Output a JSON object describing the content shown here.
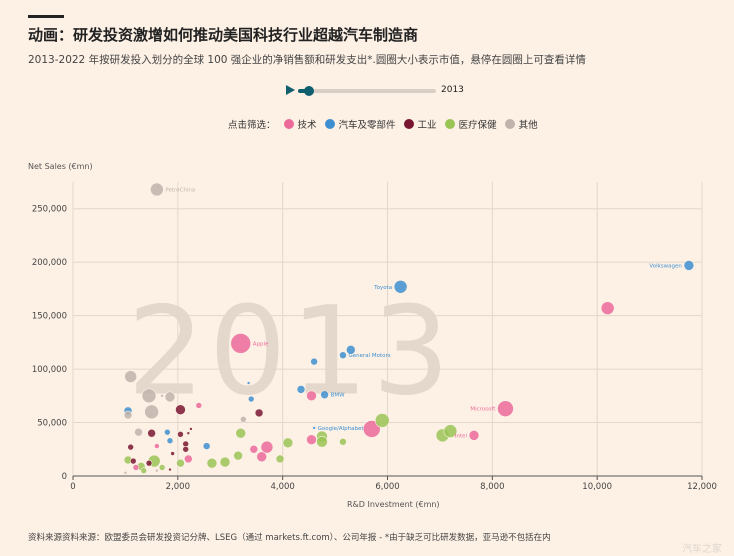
{
  "header": {
    "title": "动画：研发投资激增如何推动美国科技行业超越汽车制造商",
    "subtitle": "2013-2022 年按研发投入划分的全球 100 强企业的净销售额和研发支出*.圆圈大小表示市值，悬停在圆圈上可查看详情"
  },
  "player": {
    "year": "2013",
    "progress": 0.08
  },
  "legend": {
    "label": "点击筛选：",
    "items": [
      {
        "label": "技术",
        "color": "#ec6a9a"
      },
      {
        "label": "汽车及零部件",
        "color": "#3d8fd0"
      },
      {
        "label": "工业",
        "color": "#7a1530"
      },
      {
        "label": "医疗保健",
        "color": "#9ac455"
      },
      {
        "label": "其他",
        "color": "#bfb3ab"
      }
    ]
  },
  "footer": {
    "source": "资料来源资料来源：欧盟委员会研发投资记分牌、LSEG（通过 markets.ft.com）、公司年报 - *由于缺乏可比研发数据，亚马逊不包括在内",
    "watermark": "汽车之家"
  },
  "chart_data": {
    "type": "scatter",
    "year_watermark": "2013",
    "xlabel": "R&D Investment (€mn)",
    "ylabel": "Net Sales (€mn)",
    "xlim": [
      0,
      12000
    ],
    "ylim": [
      0,
      275000
    ],
    "xticks": [
      0,
      2000,
      4000,
      6000,
      8000,
      10000,
      12000
    ],
    "xtick_labels": [
      "0",
      "2,000",
      "4,000",
      "6,000",
      "8,000",
      "10,000",
      "12,000"
    ],
    "yticks": [
      0,
      50000,
      100000,
      150000,
      200000,
      250000
    ],
    "ytick_labels": [
      "0",
      "50,000",
      "100,000",
      "150,000",
      "200,000",
      "250,000"
    ],
    "grid": true,
    "series_colors": {
      "tech": "#ec6a9a",
      "auto": "#3d8fd0",
      "ind": "#7a1530",
      "health": "#9ac455",
      "other": "#bfb3ab"
    },
    "points": [
      {
        "x": 11750,
        "y": 197000,
        "s": "auto",
        "r": 5,
        "label": "Volkswagen",
        "anchor": "end"
      },
      {
        "x": 10200,
        "y": 157000,
        "s": "tech",
        "r": 6.5
      },
      {
        "x": 6250,
        "y": 177000,
        "s": "auto",
        "r": 6.5,
        "label": "Toyota",
        "anchor": "end"
      },
      {
        "x": 1600,
        "y": 268000,
        "s": "other",
        "r": 6.5,
        "label": "PetroChina",
        "anchor": "start"
      },
      {
        "x": 3200,
        "y": 124000,
        "s": "tech",
        "r": 10,
        "label": "Apple",
        "anchor": "start"
      },
      {
        "x": 5300,
        "y": 118000,
        "s": "auto",
        "r": 4.5
      },
      {
        "x": 5150,
        "y": 113000,
        "s": "auto",
        "r": 3.5,
        "label": "General Motors",
        "anchor": "start"
      },
      {
        "x": 4600,
        "y": 107000,
        "s": "auto",
        "r": 3.5
      },
      {
        "x": 3350,
        "y": 87000,
        "s": "auto",
        "r": 1.5
      },
      {
        "x": 4350,
        "y": 81000,
        "s": "auto",
        "r": 4
      },
      {
        "x": 4550,
        "y": 75000,
        "s": "tech",
        "r": 5
      },
      {
        "x": 4800,
        "y": 76000,
        "s": "auto",
        "r": 4,
        "label": "BMW",
        "anchor": "start"
      },
      {
        "x": 3400,
        "y": 72000,
        "s": "auto",
        "r": 3
      },
      {
        "x": 8250,
        "y": 63000,
        "s": "tech",
        "r": 8,
        "label": "Microsoft",
        "anchor": "end"
      },
      {
        "x": 5900,
        "y": 52000,
        "s": "health",
        "r": 7
      },
      {
        "x": 5700,
        "y": 44000,
        "s": "tech",
        "r": 8.5
      },
      {
        "x": 4600,
        "y": 45000,
        "s": "auto",
        "r": 1.5,
        "label": "Google/Alphabet",
        "anchor": "start"
      },
      {
        "x": 7050,
        "y": 38000,
        "s": "health",
        "r": 6.5
      },
      {
        "x": 7200,
        "y": 42000,
        "s": "health",
        "r": 6.5
      },
      {
        "x": 7650,
        "y": 38000,
        "s": "tech",
        "r": 5,
        "label": "Intel",
        "anchor": "end"
      },
      {
        "x": 4750,
        "y": 37000,
        "s": "health",
        "r": 5.5
      },
      {
        "x": 4750,
        "y": 32000,
        "s": "health",
        "r": 5.5
      },
      {
        "x": 4550,
        "y": 34000,
        "s": "tech",
        "r": 5
      },
      {
        "x": 5150,
        "y": 32000,
        "s": "health",
        "r": 3.5
      },
      {
        "x": 4100,
        "y": 31000,
        "s": "health",
        "r": 5
      },
      {
        "x": 3700,
        "y": 27000,
        "s": "tech",
        "r": 6
      },
      {
        "x": 3450,
        "y": 25000,
        "s": "tech",
        "r": 4
      },
      {
        "x": 3600,
        "y": 18000,
        "s": "tech",
        "r": 5
      },
      {
        "x": 3150,
        "y": 19000,
        "s": "health",
        "r": 4.5
      },
      {
        "x": 3200,
        "y": 40000,
        "s": "health",
        "r": 5
      },
      {
        "x": 3250,
        "y": 53000,
        "s": "other",
        "r": 3
      },
      {
        "x": 3550,
        "y": 59000,
        "s": "ind",
        "r": 4
      },
      {
        "x": 3950,
        "y": 16000,
        "s": "health",
        "r": 4
      },
      {
        "x": 2900,
        "y": 13000,
        "s": "health",
        "r": 5
      },
      {
        "x": 2650,
        "y": 12000,
        "s": "health",
        "r": 5
      },
      {
        "x": 2400,
        "y": 66000,
        "s": "tech",
        "r": 3
      },
      {
        "x": 2050,
        "y": 62000,
        "s": "ind",
        "r": 5
      },
      {
        "x": 2050,
        "y": 39000,
        "s": "ind",
        "r": 3
      },
      {
        "x": 2150,
        "y": 30000,
        "s": "ind",
        "r": 3
      },
      {
        "x": 2150,
        "y": 25000,
        "s": "ind",
        "r": 3
      },
      {
        "x": 2200,
        "y": 40000,
        "s": "ind",
        "r": 1.5
      },
      {
        "x": 2250,
        "y": 44000,
        "s": "ind",
        "r": 1.5
      },
      {
        "x": 2200,
        "y": 16000,
        "s": "tech",
        "r": 4
      },
      {
        "x": 2050,
        "y": 12000,
        "s": "health",
        "r": 4
      },
      {
        "x": 1800,
        "y": 41000,
        "s": "auto",
        "r": 3
      },
      {
        "x": 1850,
        "y": 33000,
        "s": "auto",
        "r": 3
      },
      {
        "x": 1900,
        "y": 21000,
        "s": "ind",
        "r": 2
      },
      {
        "x": 2550,
        "y": 28000,
        "s": "auto",
        "r": 3.5
      },
      {
        "x": 1850,
        "y": 74000,
        "s": "other",
        "r": 5
      },
      {
        "x": 1700,
        "y": 75000,
        "s": "other",
        "r": 1.5
      },
      {
        "x": 1450,
        "y": 75000,
        "s": "other",
        "r": 7
      },
      {
        "x": 1500,
        "y": 60000,
        "s": "other",
        "r": 7
      },
      {
        "x": 1100,
        "y": 93000,
        "s": "other",
        "r": 6
      },
      {
        "x": 1050,
        "y": 61000,
        "s": "auto",
        "r": 4
      },
      {
        "x": 1050,
        "y": 57000,
        "s": "other",
        "r": 4
      },
      {
        "x": 1500,
        "y": 40000,
        "s": "ind",
        "r": 4
      },
      {
        "x": 1250,
        "y": 41000,
        "s": "other",
        "r": 4
      },
      {
        "x": 1100,
        "y": 27000,
        "s": "ind",
        "r": 3
      },
      {
        "x": 1600,
        "y": 28000,
        "s": "tech",
        "r": 2.5
      },
      {
        "x": 1550,
        "y": 14000,
        "s": "health",
        "r": 6
      },
      {
        "x": 1450,
        "y": 12000,
        "s": "ind",
        "r": 3
      },
      {
        "x": 1300,
        "y": 9000,
        "s": "health",
        "r": 4
      },
      {
        "x": 1150,
        "y": 14000,
        "s": "ind",
        "r": 3
      },
      {
        "x": 1050,
        "y": 15000,
        "s": "health",
        "r": 4
      },
      {
        "x": 1200,
        "y": 8000,
        "s": "tech",
        "r": 3
      },
      {
        "x": 1700,
        "y": 8000,
        "s": "health",
        "r": 3
      },
      {
        "x": 1850,
        "y": 6000,
        "s": "ind",
        "r": 1.5
      },
      {
        "x": 1350,
        "y": 5000,
        "s": "health",
        "r": 3
      },
      {
        "x": 1600,
        "y": 5000,
        "s": "other",
        "r": 1.5
      },
      {
        "x": 1000,
        "y": 3000,
        "s": "other",
        "r": 1.5
      }
    ]
  }
}
